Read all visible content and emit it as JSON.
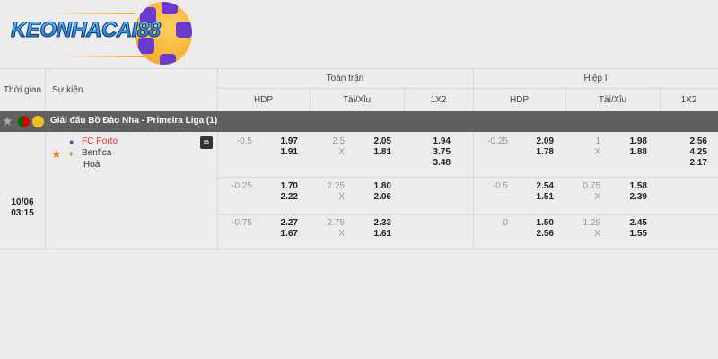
{
  "logo": {
    "text": "KEONHACAI88"
  },
  "header": {
    "time": "Thời gian",
    "event": "Sự kiện",
    "full_time": "Toàn trận",
    "first_half": "Hiệp I",
    "hdp": "HDP",
    "ou": "Tài/Xỉu",
    "x12": "1X2"
  },
  "league": {
    "name": "Giải đấu Bồ Đào Nha - Primeira Liga (1)"
  },
  "match": {
    "date": "10/06",
    "time": "03:15",
    "home": "FC Porto",
    "away": "Benfica",
    "draw": "Hoà",
    "home_color": "#e03030"
  },
  "rows": [
    {
      "ft_hdp": "-0.5",
      "ft_hdp_h": "1.97",
      "ft_hdp_a": "1.91",
      "ft_ou": "2.5",
      "ft_ou_x": "X",
      "ft_ou_o": "2.05",
      "ft_ou_u": "1.81",
      "ft_1": "1.94",
      "ft_2": "3.75",
      "ft_x": "3.48",
      "h1_hdp": "-0.25",
      "h1_hdp_h": "2.09",
      "h1_hdp_a": "1.78",
      "h1_ou": "1",
      "h1_ou_x": "X",
      "h1_ou_o": "1.98",
      "h1_ou_u": "1.88",
      "h1_1": "2.56",
      "h1_2": "4.25",
      "h1_x": "2.17"
    },
    {
      "ft_hdp": "-0.25",
      "ft_hdp_h": "1.70",
      "ft_hdp_a": "2.22",
      "ft_ou": "2.25",
      "ft_ou_x": "X",
      "ft_ou_o": "1.80",
      "ft_ou_u": "2.06",
      "h1_hdp": "-0.5",
      "h1_hdp_h": "2.54",
      "h1_hdp_a": "1.51",
      "h1_ou": "0.75",
      "h1_ou_x": "X",
      "h1_ou_o": "1.58",
      "h1_ou_u": "2.39"
    },
    {
      "ft_hdp": "-0.75",
      "ft_hdp_h": "2.27",
      "ft_hdp_a": "1.67",
      "ft_ou": "2.75",
      "ft_ou_x": "X",
      "ft_ou_o": "2.33",
      "ft_ou_u": "1.61",
      "h1_hdp": "0",
      "h1_hdp_h": "1.50",
      "h1_hdp_a": "2.56",
      "h1_ou": "1.25",
      "h1_ou_x": "X",
      "h1_ou_o": "2.45",
      "h1_ou_u": "1.55"
    }
  ]
}
